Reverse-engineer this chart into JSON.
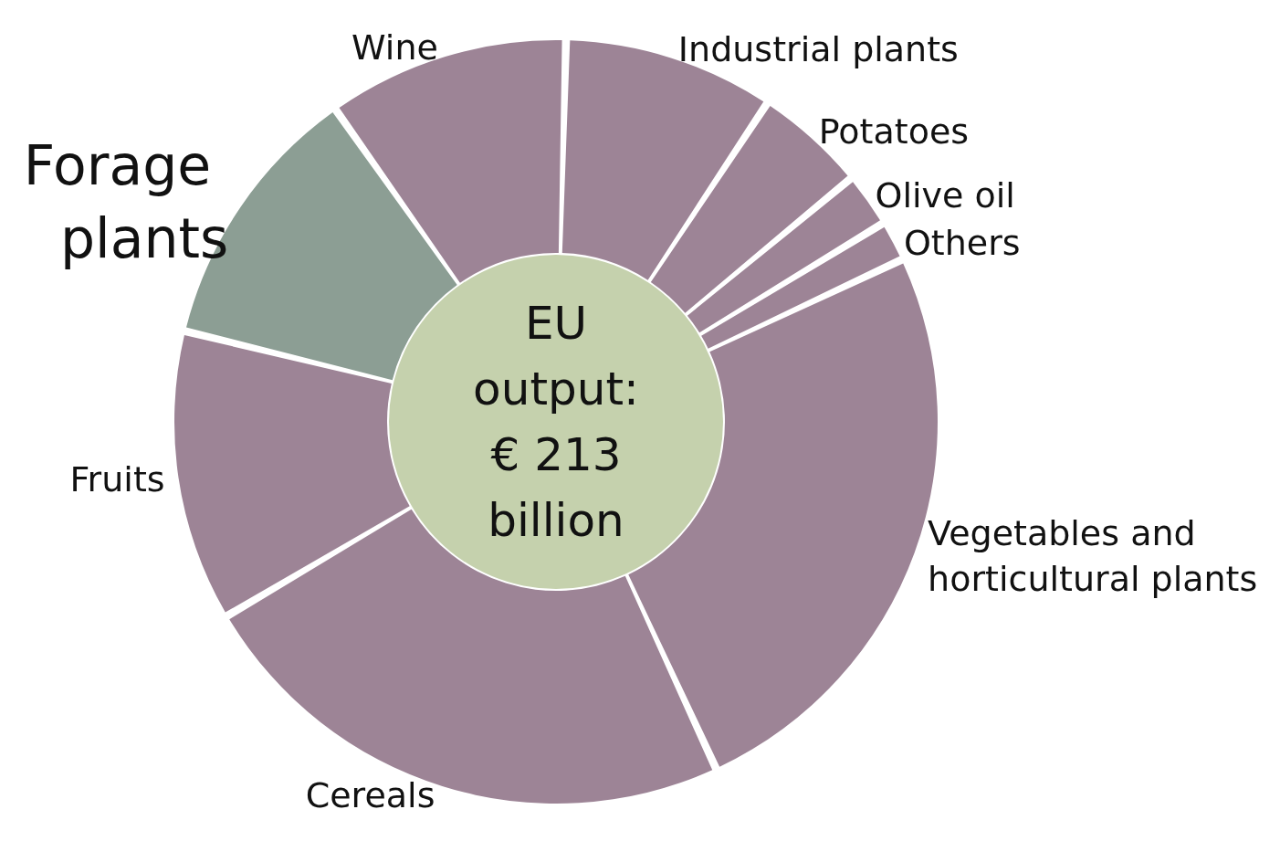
{
  "chart_data": {
    "type": "donut",
    "categories": [
      "Industrial plants",
      "Potatoes",
      "Olive oil",
      "Others",
      "Vegetables and horticultural plants",
      "Cereals",
      "Fruits",
      "Forage plants",
      "Wine"
    ],
    "values": [
      8.9,
      4.7,
      2.3,
      1.7,
      25.1,
      23.4,
      12.3,
      11.4,
      10.2
    ],
    "colors": [
      "#9d8496",
      "#9d8496",
      "#9d8496",
      "#9d8496",
      "#9d8496",
      "#9d8496",
      "#9d8496",
      "#8c9e94",
      "#9d8496"
    ],
    "annotations": [
      "EU output: € 213 billion"
    ]
  }
}
